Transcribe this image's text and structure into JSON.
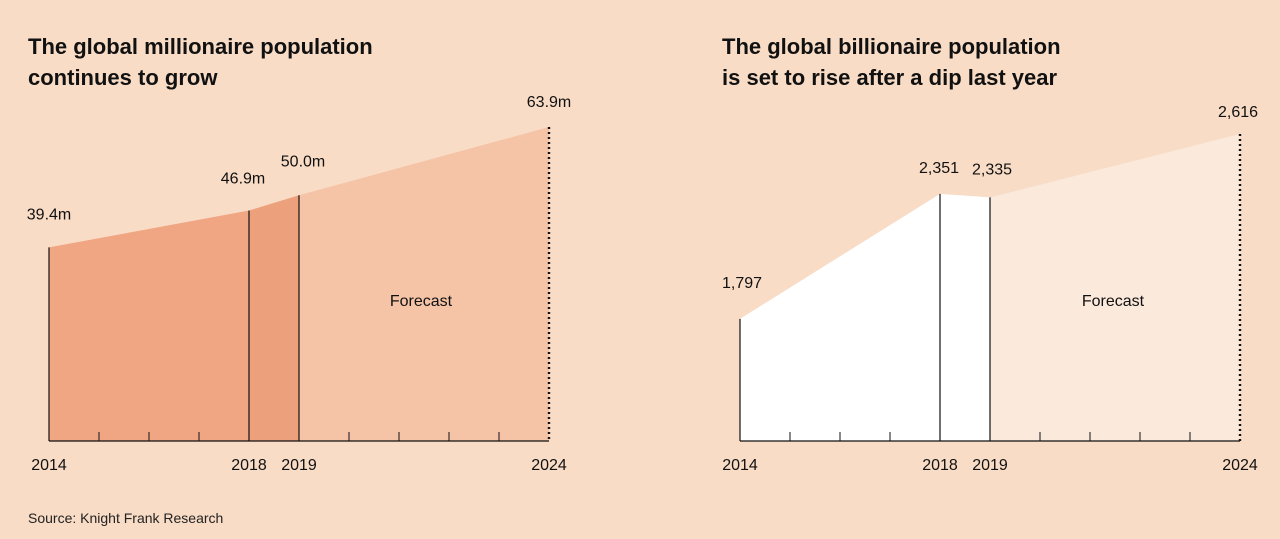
{
  "chart_data": [
    {
      "type": "area",
      "title": "The global millionaire population\ncontinues to grow",
      "x": [
        2014,
        2018,
        2019,
        2024
      ],
      "values": [
        39.4,
        46.9,
        50.0,
        63.9
      ],
      "value_labels": [
        "39.4m",
        "46.9m",
        "50.0m",
        "63.9m"
      ],
      "tick_labels": [
        "2014",
        "2018",
        "2019",
        "2024"
      ],
      "forecast_from": 2019,
      "forecast_label": "Forecast",
      "colors": {
        "history": "#f0a683",
        "history_2018_2019": "#eda07c",
        "forecast": "#f5c4a7"
      }
    },
    {
      "type": "area",
      "title": "The global billionaire population\nis set to rise after a dip last year",
      "x": [
        2014,
        2018,
        2019,
        2024
      ],
      "values": [
        1797,
        2351,
        2335,
        2616
      ],
      "value_labels": [
        "1,797",
        "2,351",
        "2,335",
        "2,616"
      ],
      "tick_labels": [
        "2014",
        "2018",
        "2019",
        "2024"
      ],
      "forecast_from": 2019,
      "forecast_label": "Forecast",
      "colors": {
        "history": "#ffffff",
        "history_2018_2019": "#ffffff",
        "forecast": "#fbe9dc"
      }
    }
  ],
  "source": "Source: Knight Frank Research"
}
